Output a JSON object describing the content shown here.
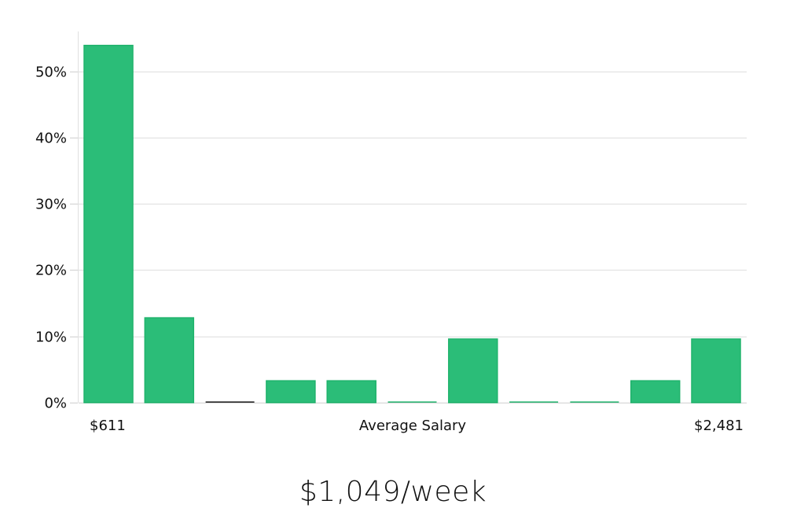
{
  "chart_data": {
    "type": "bar",
    "values": [
      53.9,
      12.8,
      0,
      3.3,
      3.3,
      0,
      9.6,
      0,
      0,
      3.3,
      9.6
    ],
    "ylim": [
      0,
      56
    ],
    "yticks": [
      0,
      10,
      20,
      30,
      40,
      50
    ],
    "ytick_format": "%",
    "grid": true,
    "x_min_label": "$611",
    "x_max_label": "$2,481",
    "xlabel": "Average Salary",
    "bar_color": "#2bbd78",
    "bar_edge_color": "#20b36c",
    "zero_bar_color": "#1a1a1a"
  },
  "summary": {
    "salary_text": "$1,049/week"
  }
}
